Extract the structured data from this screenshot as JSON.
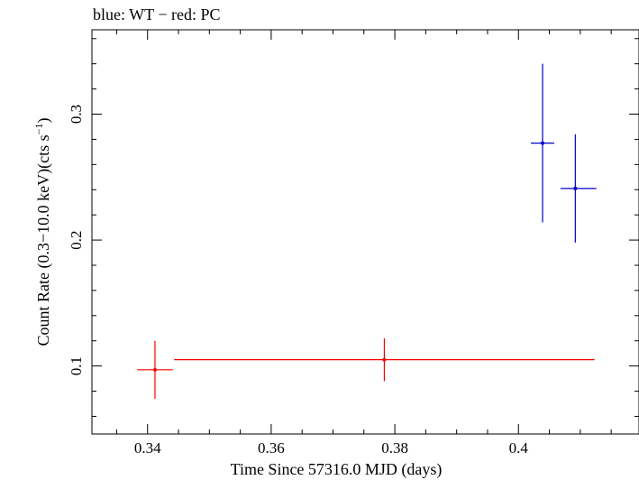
{
  "title": "blue: WT − red: PC",
  "chart_data": {
    "type": "scatter",
    "title": "blue: WT − red: PC",
    "xlabel": "Time Since 57316.0 MJD (days)",
    "ylabel_main": "Count Rate (0.3−10.0 keV)(cts s",
    "ylabel_sup": "−1",
    "ylabel_tail": ")",
    "xlim": [
      0.331,
      0.4195
    ],
    "ylim": [
      0.046,
      0.367
    ],
    "x_ticks": [
      0.34,
      0.36,
      0.38,
      0.4
    ],
    "x_tick_labels": [
      "0.34",
      "0.36",
      "0.38",
      "0.4"
    ],
    "y_ticks": [
      0.1,
      0.2,
      0.3
    ],
    "y_tick_labels": [
      "0.1",
      "0.2",
      "0.3"
    ],
    "grid": false,
    "series": [
      {
        "mode": "WT",
        "color": "#0000cc",
        "points": [
          {
            "x": 0.4039,
            "xerr_minus": 0.0019,
            "xerr_plus": 0.0019,
            "y": 0.277,
            "yerr_minus": 0.063,
            "yerr_plus": 0.063
          },
          {
            "x": 0.4092,
            "xerr_minus": 0.0024,
            "xerr_plus": 0.0034,
            "y": 0.241,
            "yerr_minus": 0.043,
            "yerr_plus": 0.043
          }
        ]
      },
      {
        "mode": "PC",
        "color": "#ff0000",
        "points": [
          {
            "x": 0.3412,
            "xerr_minus": 0.0029,
            "xerr_plus": 0.0029,
            "y": 0.097,
            "yerr_minus": 0.023,
            "yerr_plus": 0.023
          },
          {
            "x": 0.3783,
            "xerr_minus": 0.034,
            "xerr_plus": 0.034,
            "y": 0.105,
            "yerr_minus": 0.017,
            "yerr_plus": 0.017
          }
        ]
      }
    ]
  }
}
